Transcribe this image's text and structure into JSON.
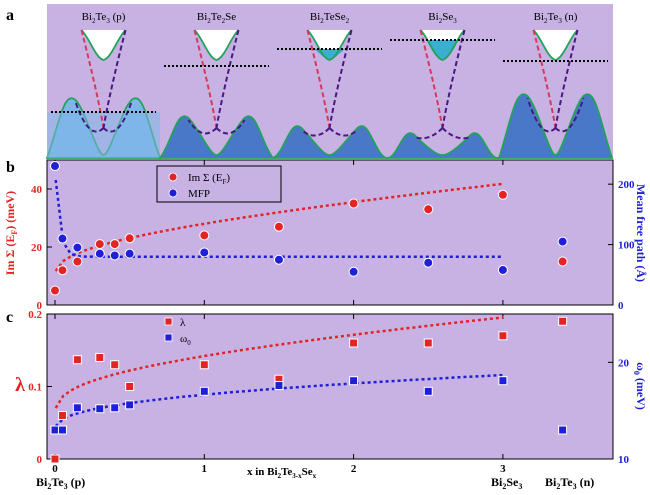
{
  "colors": {
    "panel_bg": "#c8b1e3",
    "red": "#e32424",
    "blue": "#1f1fd8",
    "band_green": "#23a35a",
    "band_fill": "#4a78c8",
    "band_fill_light": "#7fb6ea",
    "dirac_red": "#d43a5a",
    "dirac_purple": "#4a1880"
  },
  "panel_a": {
    "label": "a",
    "columns": [
      {
        "pre": "Bi",
        "s1": "2",
        "mid": "Te",
        "s2": "3",
        "post": " (p)"
      },
      {
        "pre": "Bi",
        "s1": "2",
        "mid": "Te",
        "s2": "2",
        "post": "Se"
      },
      {
        "pre": "Bi",
        "s1": "2",
        "mid": "TeSe",
        "s2": "2",
        "post": ""
      },
      {
        "pre": "Bi",
        "s1": "2",
        "mid": "Se",
        "s2": "3",
        "post": ""
      },
      {
        "pre": "Bi",
        "s1": "2",
        "mid": "Te",
        "s2": "3",
        "post": " (n)"
      }
    ]
  },
  "panel_b": {
    "label": "b",
    "ylabel_left": "Im Σ (E",
    "ylabel_left_sub": "F",
    "ylabel_left_end": ") (meV)",
    "ylabel_right": "Mean free path (Å)",
    "left_ticks": [
      "0",
      "20",
      "40"
    ],
    "right_ticks": [
      "0",
      "100",
      "200"
    ],
    "legend": {
      "imsigma_label": "Im Σ (E",
      "imsigma_sub": "F",
      "imsigma_end": ")",
      "mfp_label": "MFP"
    }
  },
  "panel_c": {
    "label": "c",
    "ylabel_left": "λ",
    "ylabel_right_main": "ω",
    "ylabel_right_sub": "0",
    "ylabel_right_end": " (meV)",
    "left_ticks": [
      "0",
      "0.1",
      "0.2"
    ],
    "right_ticks": [
      "10",
      "20"
    ],
    "legend": {
      "lambda_label": "λ",
      "omega_main": "ω",
      "omega_sub": "0"
    }
  },
  "xaxis": {
    "ticks": [
      "0",
      "1",
      "2",
      "3"
    ],
    "label_pre": "x in Bi",
    "label_s1": "2",
    "label_mid": "Te",
    "label_s2": "3-x",
    "label_mid2": "Se",
    "label_s3": "x",
    "bottom_left": {
      "pre": "Bi",
      "s1": "2",
      "mid": "Te",
      "s2": "3",
      "post": " (p)"
    },
    "bottom_mid": {
      "pre": "Bi",
      "s1": "2",
      "mid": "Se",
      "s2": "3",
      "post": ""
    },
    "bottom_right": {
      "pre": "Bi",
      "s1": "2",
      "mid": "Te",
      "s2": "3",
      "post": " (n)"
    }
  },
  "chart_data": [
    {
      "type": "scatter",
      "panel": "b",
      "xlim": [
        -0.05,
        3.65
      ],
      "series": [
        {
          "name": "Im Σ (EF)",
          "axis": "left",
          "ylim": [
            0,
            50
          ],
          "marker": "circle",
          "x": [
            0,
            0.05,
            0.15,
            0.3,
            0.4,
            0.5,
            1.0,
            1.5,
            2.0,
            2.5,
            3.0,
            3.4
          ],
          "y": [
            5,
            12,
            15,
            21,
            21,
            23,
            24,
            27,
            35,
            33,
            38,
            15
          ]
        },
        {
          "name": "MFP",
          "axis": "right",
          "ylim": [
            0,
            240
          ],
          "marker": "circle",
          "x": [
            0,
            0.05,
            0.15,
            0.3,
            0.4,
            0.5,
            1.0,
            1.5,
            2.0,
            2.5,
            3.0,
            3.4
          ],
          "y": [
            230,
            110,
            95,
            85,
            82,
            85,
            87,
            75,
            55,
            70,
            58,
            105
          ]
        }
      ]
    },
    {
      "type": "scatter",
      "panel": "c",
      "xlim": [
        -0.05,
        3.65
      ],
      "series": [
        {
          "name": "λ",
          "axis": "left",
          "ylim": [
            0,
            0.2
          ],
          "marker": "square",
          "x": [
            0,
            0.05,
            0.15,
            0.3,
            0.4,
            0.5,
            1.0,
            1.5,
            2.0,
            2.5,
            3.0,
            3.4
          ],
          "y": [
            0.0,
            0.06,
            0.137,
            0.14,
            0.13,
            0.1,
            0.13,
            0.11,
            0.16,
            0.16,
            0.17,
            0.19
          ]
        },
        {
          "name": "ω0",
          "axis": "right",
          "ylim": [
            10,
            25
          ],
          "marker": "square",
          "x": [
            0,
            0.05,
            0.15,
            0.3,
            0.4,
            0.5,
            1.0,
            1.5,
            2.0,
            2.5,
            3.0,
            3.4
          ],
          "y": [
            13,
            13,
            15.3,
            15.2,
            15.3,
            15.6,
            17,
            17.6,
            18.1,
            17,
            18.1,
            13
          ]
        }
      ]
    }
  ]
}
